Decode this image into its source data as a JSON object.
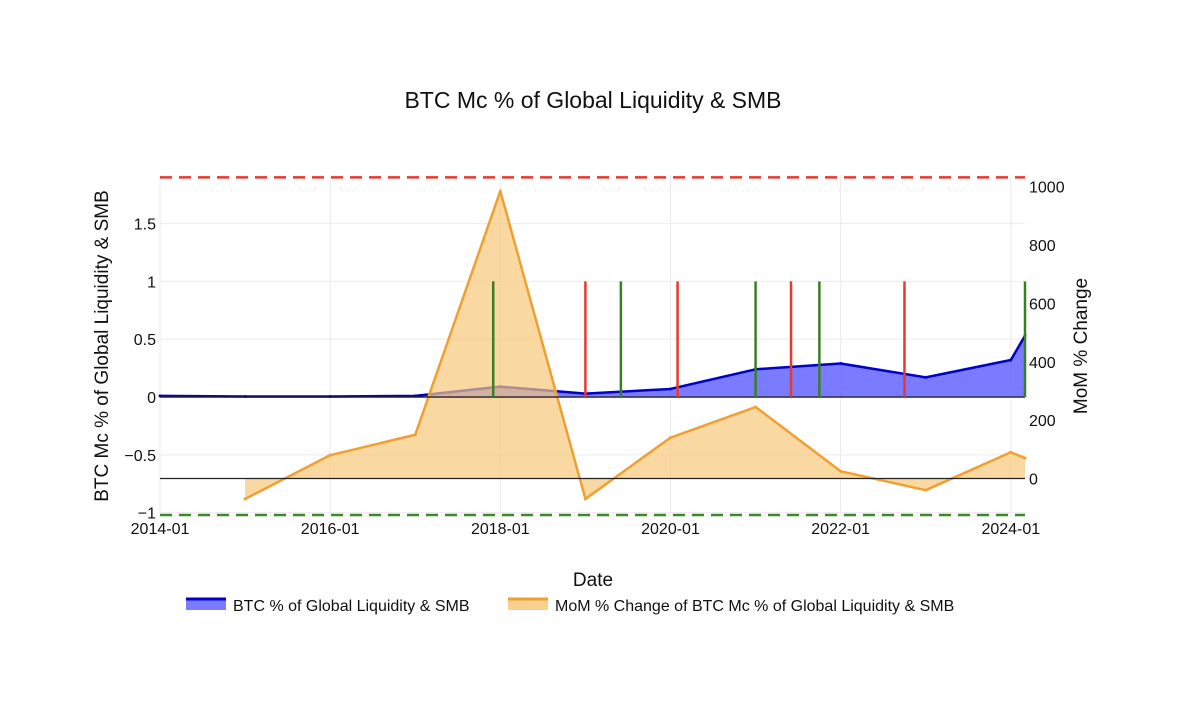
{
  "chart_data": {
    "type": "area",
    "title": "BTC Mc % of Global Liquidity & SMB",
    "xlabel": "Date",
    "ylabel": "BTC Mc % of Global Liquidity & SMB",
    "y2label": "MoM % Change",
    "x_tick_labels": [
      "2014-01",
      "2016-01",
      "2018-01",
      "2020-01",
      "2022-01",
      "2024-01"
    ],
    "y_tick_labels": [
      "−1",
      "−0.5",
      "0",
      "0.5",
      "1",
      "1.5"
    ],
    "y2_tick_labels": [
      "0",
      "200",
      "400",
      "600",
      "800",
      "1000"
    ],
    "ylim": [
      -1.02,
      1.92
    ],
    "y2lim": [
      -125,
      1040
    ],
    "xlim": [
      "2014-01",
      "2024-03"
    ],
    "series": [
      {
        "name": "BTC % of Global Liquidity & SMB",
        "axis": "left",
        "color": "#0000cc",
        "fill": "#6464ff",
        "x": [
          "2014-01",
          "2015-01",
          "2016-01",
          "2017-01",
          "2018-01",
          "2019-01",
          "2020-01",
          "2021-01",
          "2022-01",
          "2023-01",
          "2024-01",
          "2024-03"
        ],
        "values": [
          0.01,
          0.005,
          0.005,
          0.01,
          0.09,
          0.03,
          0.07,
          0.24,
          0.29,
          0.17,
          0.32,
          0.53
        ]
      },
      {
        "name": "MoM % Change of BTC Mc % of Global Liquidity & SMB",
        "axis": "right",
        "color": "#f0a030",
        "fill": "#f8c87a",
        "x": [
          "2015-01",
          "2016-01",
          "2017-01",
          "2018-01",
          "2019-01",
          "2020-01",
          "2021-01",
          "2022-01",
          "2023-01",
          "2024-01",
          "2024-03"
        ],
        "values": [
          -70,
          80,
          150,
          985,
          -70,
          140,
          245,
          25,
          -40,
          90,
          70
        ]
      }
    ],
    "horizontal_lines": [
      {
        "y": 1.9,
        "axis": "left",
        "color": "#e8392e",
        "style": "dashed"
      },
      {
        "y": -1.02,
        "axis": "left",
        "color": "#3a8a2a",
        "style": "dashed"
      },
      {
        "y": 0,
        "axis": "left",
        "color": "#222222",
        "style": "solid"
      },
      {
        "y": 0,
        "axis": "right",
        "color": "#222222",
        "style": "solid"
      }
    ],
    "signals": {
      "buy_color": "#3a7f25",
      "sell_color": "#e8392e",
      "buy_dates": [
        "2017-12",
        "2019-06",
        "2021-01",
        "2021-10",
        "2024-03"
      ],
      "sell_dates": [
        "2019-01",
        "2020-02",
        "2021-06",
        "2022-10"
      ]
    },
    "legend_position": "bottom-center",
    "grid": true
  }
}
